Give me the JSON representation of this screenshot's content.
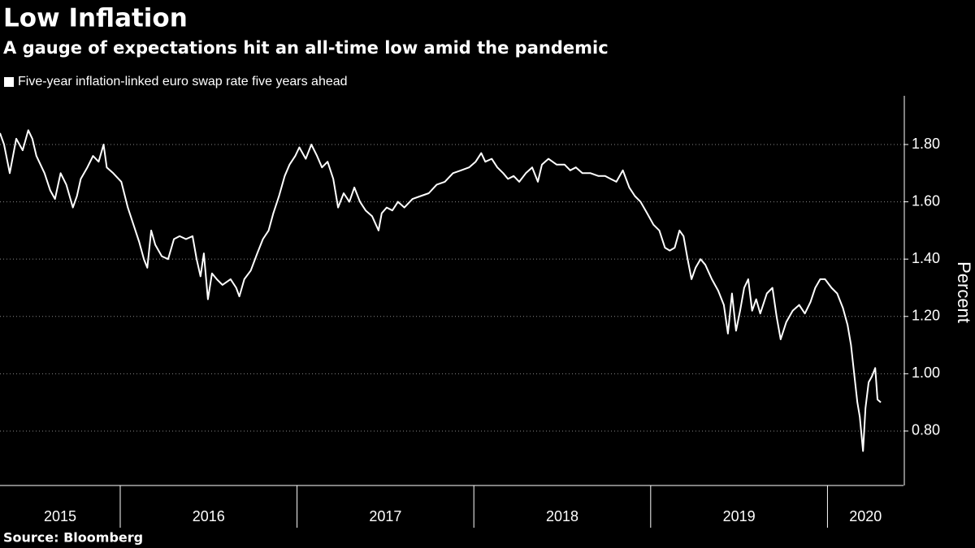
{
  "chart_data": {
    "type": "line",
    "title": "Low Inflation",
    "subtitle": "A gauge of expectations hit an all-time low amid the pandemic",
    "y_label": "Percent",
    "source": "Source: Bloomberg",
    "xlim": [
      2015.32,
      2020.43
    ],
    "xticks": [
      2015,
      2016,
      2017,
      2018,
      2019,
      2020
    ],
    "ylim": [
      0.61,
      1.97
    ],
    "yticks": [
      {
        "value": 0.8,
        "label": "0.80"
      },
      {
        "value": 1.0,
        "label": "1.00"
      },
      {
        "value": 1.2,
        "label": "1.20"
      },
      {
        "value": 1.4,
        "label": "1.40"
      },
      {
        "value": 1.6,
        "label": "1.60"
      },
      {
        "value": 1.8,
        "label": "1.80"
      }
    ],
    "grid": true,
    "legend": "top-left",
    "x": [
      2015.32,
      2015.343,
      2015.375,
      2015.412,
      2015.448,
      2015.48,
      2015.503,
      2015.526,
      2015.572,
      2015.604,
      2015.631,
      2015.663,
      2015.695,
      2015.732,
      2015.755,
      2015.777,
      2015.814,
      2015.846,
      2015.878,
      2015.906,
      2015.924,
      2015.96,
      2016.006,
      2016.043,
      2016.075,
      2016.107,
      2016.134,
      2016.153,
      2016.175,
      2016.198,
      2016.235,
      2016.271,
      2016.304,
      2016.336,
      2016.372,
      2016.409,
      2016.432,
      2016.454,
      2016.473,
      2016.496,
      2016.519,
      2016.546,
      2016.578,
      2016.624,
      2016.656,
      2016.674,
      2016.702,
      2016.738,
      2016.775,
      2016.807,
      2016.839,
      2016.866,
      2016.898,
      2016.93,
      2016.958,
      2016.99,
      2017.013,
      2017.049,
      2017.081,
      2017.113,
      2017.141,
      2017.173,
      2017.205,
      2017.232,
      2017.264,
      2017.296,
      2017.324,
      2017.356,
      2017.388,
      2017.424,
      2017.461,
      2017.479,
      2017.507,
      2017.539,
      2017.571,
      2017.607,
      2017.653,
      2017.699,
      2017.745,
      2017.79,
      2017.836,
      2017.882,
      2017.928,
      2017.973,
      2018.01,
      2018.042,
      2018.065,
      2018.101,
      2018.133,
      2018.166,
      2018.193,
      2018.225,
      2018.257,
      2018.294,
      2018.33,
      2018.362,
      2018.385,
      2018.422,
      2018.468,
      2018.513,
      2018.545,
      2018.577,
      2018.614,
      2018.66,
      2018.705,
      2018.742,
      2018.774,
      2018.806,
      2018.843,
      2018.879,
      2018.911,
      2018.943,
      2018.98,
      2019.016,
      2019.049,
      2019.081,
      2019.108,
      2019.136,
      2019.163,
      2019.186,
      2019.209,
      2019.231,
      2019.254,
      2019.282,
      2019.309,
      2019.346,
      2019.382,
      2019.414,
      2019.437,
      2019.46,
      2019.483,
      2019.506,
      2019.529,
      2019.552,
      2019.574,
      2019.597,
      2019.62,
      2019.657,
      2019.689,
      2019.712,
      2019.735,
      2019.767,
      2019.803,
      2019.84,
      2019.872,
      2019.904,
      2019.931,
      2019.959,
      2019.986,
      2020.023,
      2020.055,
      2020.087,
      2020.114,
      2020.133,
      2020.151,
      2020.169,
      2020.183,
      2020.201,
      2020.215,
      2020.233,
      2020.251,
      2020.27,
      2020.283,
      2020.302
    ],
    "series": [
      {
        "name": "Five-year inflation-linked euro swap rate five years ahead",
        "color": "#ffffff",
        "values": [
          1.84,
          1.8,
          1.7,
          1.82,
          1.78,
          1.85,
          1.82,
          1.76,
          1.7,
          1.64,
          1.61,
          1.7,
          1.66,
          1.58,
          1.62,
          1.68,
          1.72,
          1.76,
          1.74,
          1.8,
          1.72,
          1.7,
          1.67,
          1.58,
          1.52,
          1.46,
          1.4,
          1.37,
          1.5,
          1.45,
          1.41,
          1.4,
          1.47,
          1.48,
          1.47,
          1.48,
          1.4,
          1.34,
          1.42,
          1.26,
          1.35,
          1.33,
          1.31,
          1.33,
          1.3,
          1.27,
          1.33,
          1.36,
          1.42,
          1.47,
          1.5,
          1.56,
          1.62,
          1.69,
          1.73,
          1.76,
          1.79,
          1.75,
          1.8,
          1.76,
          1.72,
          1.74,
          1.68,
          1.58,
          1.63,
          1.6,
          1.65,
          1.6,
          1.57,
          1.55,
          1.5,
          1.56,
          1.58,
          1.57,
          1.6,
          1.58,
          1.61,
          1.62,
          1.63,
          1.66,
          1.67,
          1.7,
          1.71,
          1.72,
          1.74,
          1.77,
          1.74,
          1.75,
          1.72,
          1.7,
          1.68,
          1.69,
          1.67,
          1.7,
          1.72,
          1.67,
          1.73,
          1.75,
          1.73,
          1.73,
          1.71,
          1.72,
          1.7,
          1.7,
          1.69,
          1.69,
          1.68,
          1.67,
          1.71,
          1.65,
          1.62,
          1.6,
          1.56,
          1.52,
          1.5,
          1.44,
          1.43,
          1.44,
          1.5,
          1.48,
          1.4,
          1.33,
          1.37,
          1.4,
          1.38,
          1.33,
          1.29,
          1.24,
          1.14,
          1.28,
          1.15,
          1.22,
          1.3,
          1.33,
          1.22,
          1.26,
          1.21,
          1.28,
          1.3,
          1.2,
          1.12,
          1.18,
          1.22,
          1.24,
          1.21,
          1.25,
          1.3,
          1.33,
          1.33,
          1.3,
          1.28,
          1.23,
          1.17,
          1.1,
          1.0,
          0.9,
          0.85,
          0.73,
          0.88,
          0.97,
          0.99,
          1.02,
          0.91,
          0.9
        ]
      }
    ]
  }
}
